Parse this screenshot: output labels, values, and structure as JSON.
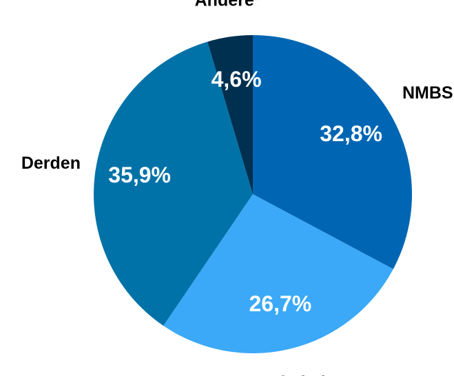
{
  "chart_data": {
    "type": "pie",
    "categories": [
      "NMBS",
      "Infrabel",
      "Derden",
      "Andere*"
    ],
    "values": [
      32.8,
      26.7,
      35.9,
      4.6
    ],
    "value_labels": [
      "32,8%",
      "26,7%",
      "35,9%",
      "4,6%"
    ],
    "colors": [
      "#0066b3",
      "#3ba9f7",
      "#0072a8",
      "#00304f"
    ]
  }
}
